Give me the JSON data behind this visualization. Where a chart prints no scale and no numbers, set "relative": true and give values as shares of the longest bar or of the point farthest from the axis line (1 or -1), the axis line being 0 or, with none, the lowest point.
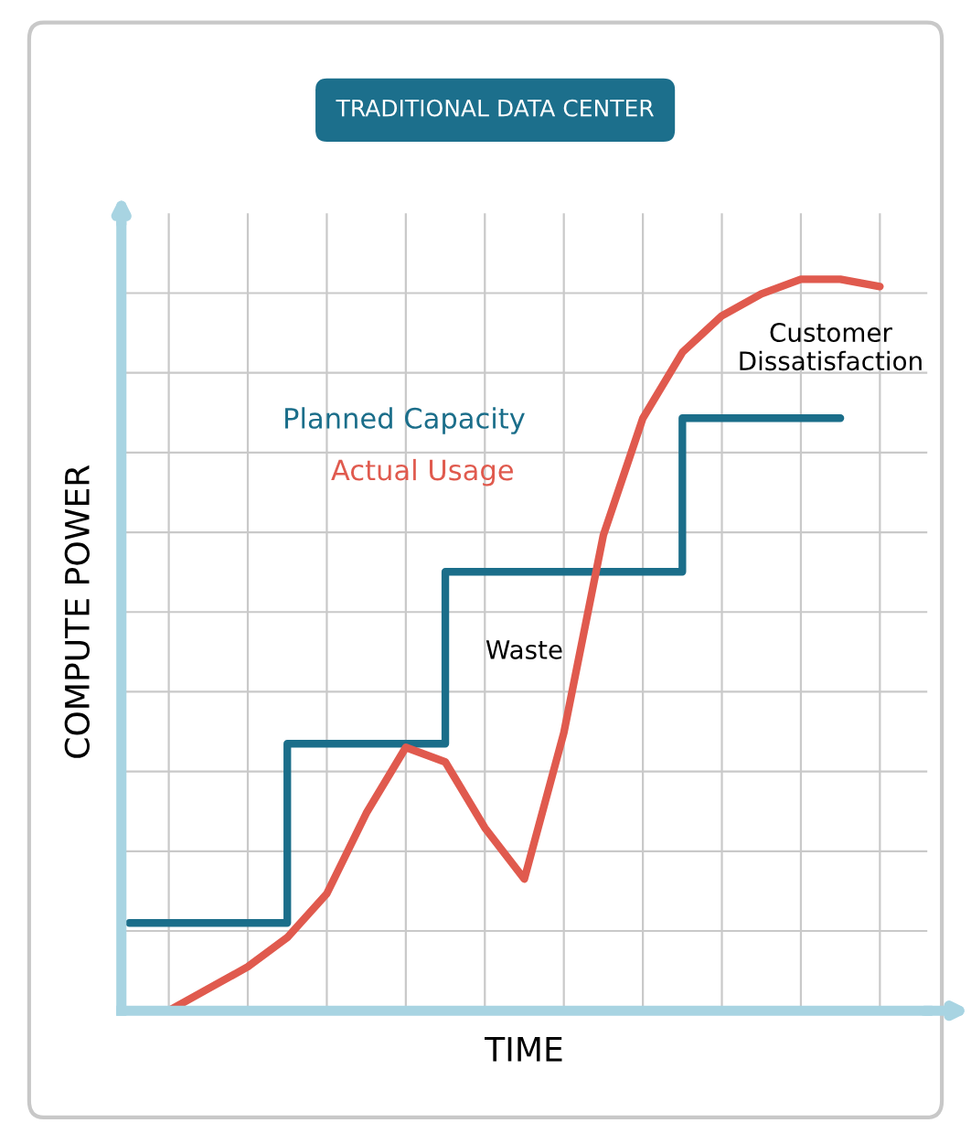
{
  "chart_data": {
    "type": "line",
    "title": "TRADITIONAL DATA CENTER",
    "xlabel": "TIME",
    "ylabel": "COMPUTE POWER",
    "relative": true,
    "grid": true,
    "tick_labels": false,
    "categories": [
      null,
      null,
      null,
      null,
      null,
      null,
      null,
      null,
      null,
      null,
      null,
      null,
      null,
      null,
      null,
      null,
      null,
      null,
      null,
      null
    ],
    "series": [
      {
        "name": "Planned Capacity",
        "type": "step",
        "color": "#1b6e8a",
        "values": [
          0.12,
          0.12,
          0.12,
          0.12,
          0.365,
          0.365,
          0.365,
          0.365,
          0.6,
          0.6,
          0.6,
          0.6,
          0.6,
          0.6,
          0.81,
          0.81,
          0.81,
          0.81,
          0.81,
          null
        ]
      },
      {
        "name": "Actual Usage",
        "type": "line",
        "color": "#e05a4e",
        "values": [
          null,
          0,
          0.03,
          0.06,
          0.1,
          0.16,
          0.27,
          0.36,
          0.34,
          0.25,
          0.18,
          0.38,
          0.65,
          0.81,
          0.9,
          0.95,
          0.98,
          1,
          1,
          0.99
        ]
      }
    ],
    "annotations": [
      "Waste",
      "Customer\nDissatisfaction"
    ]
  }
}
